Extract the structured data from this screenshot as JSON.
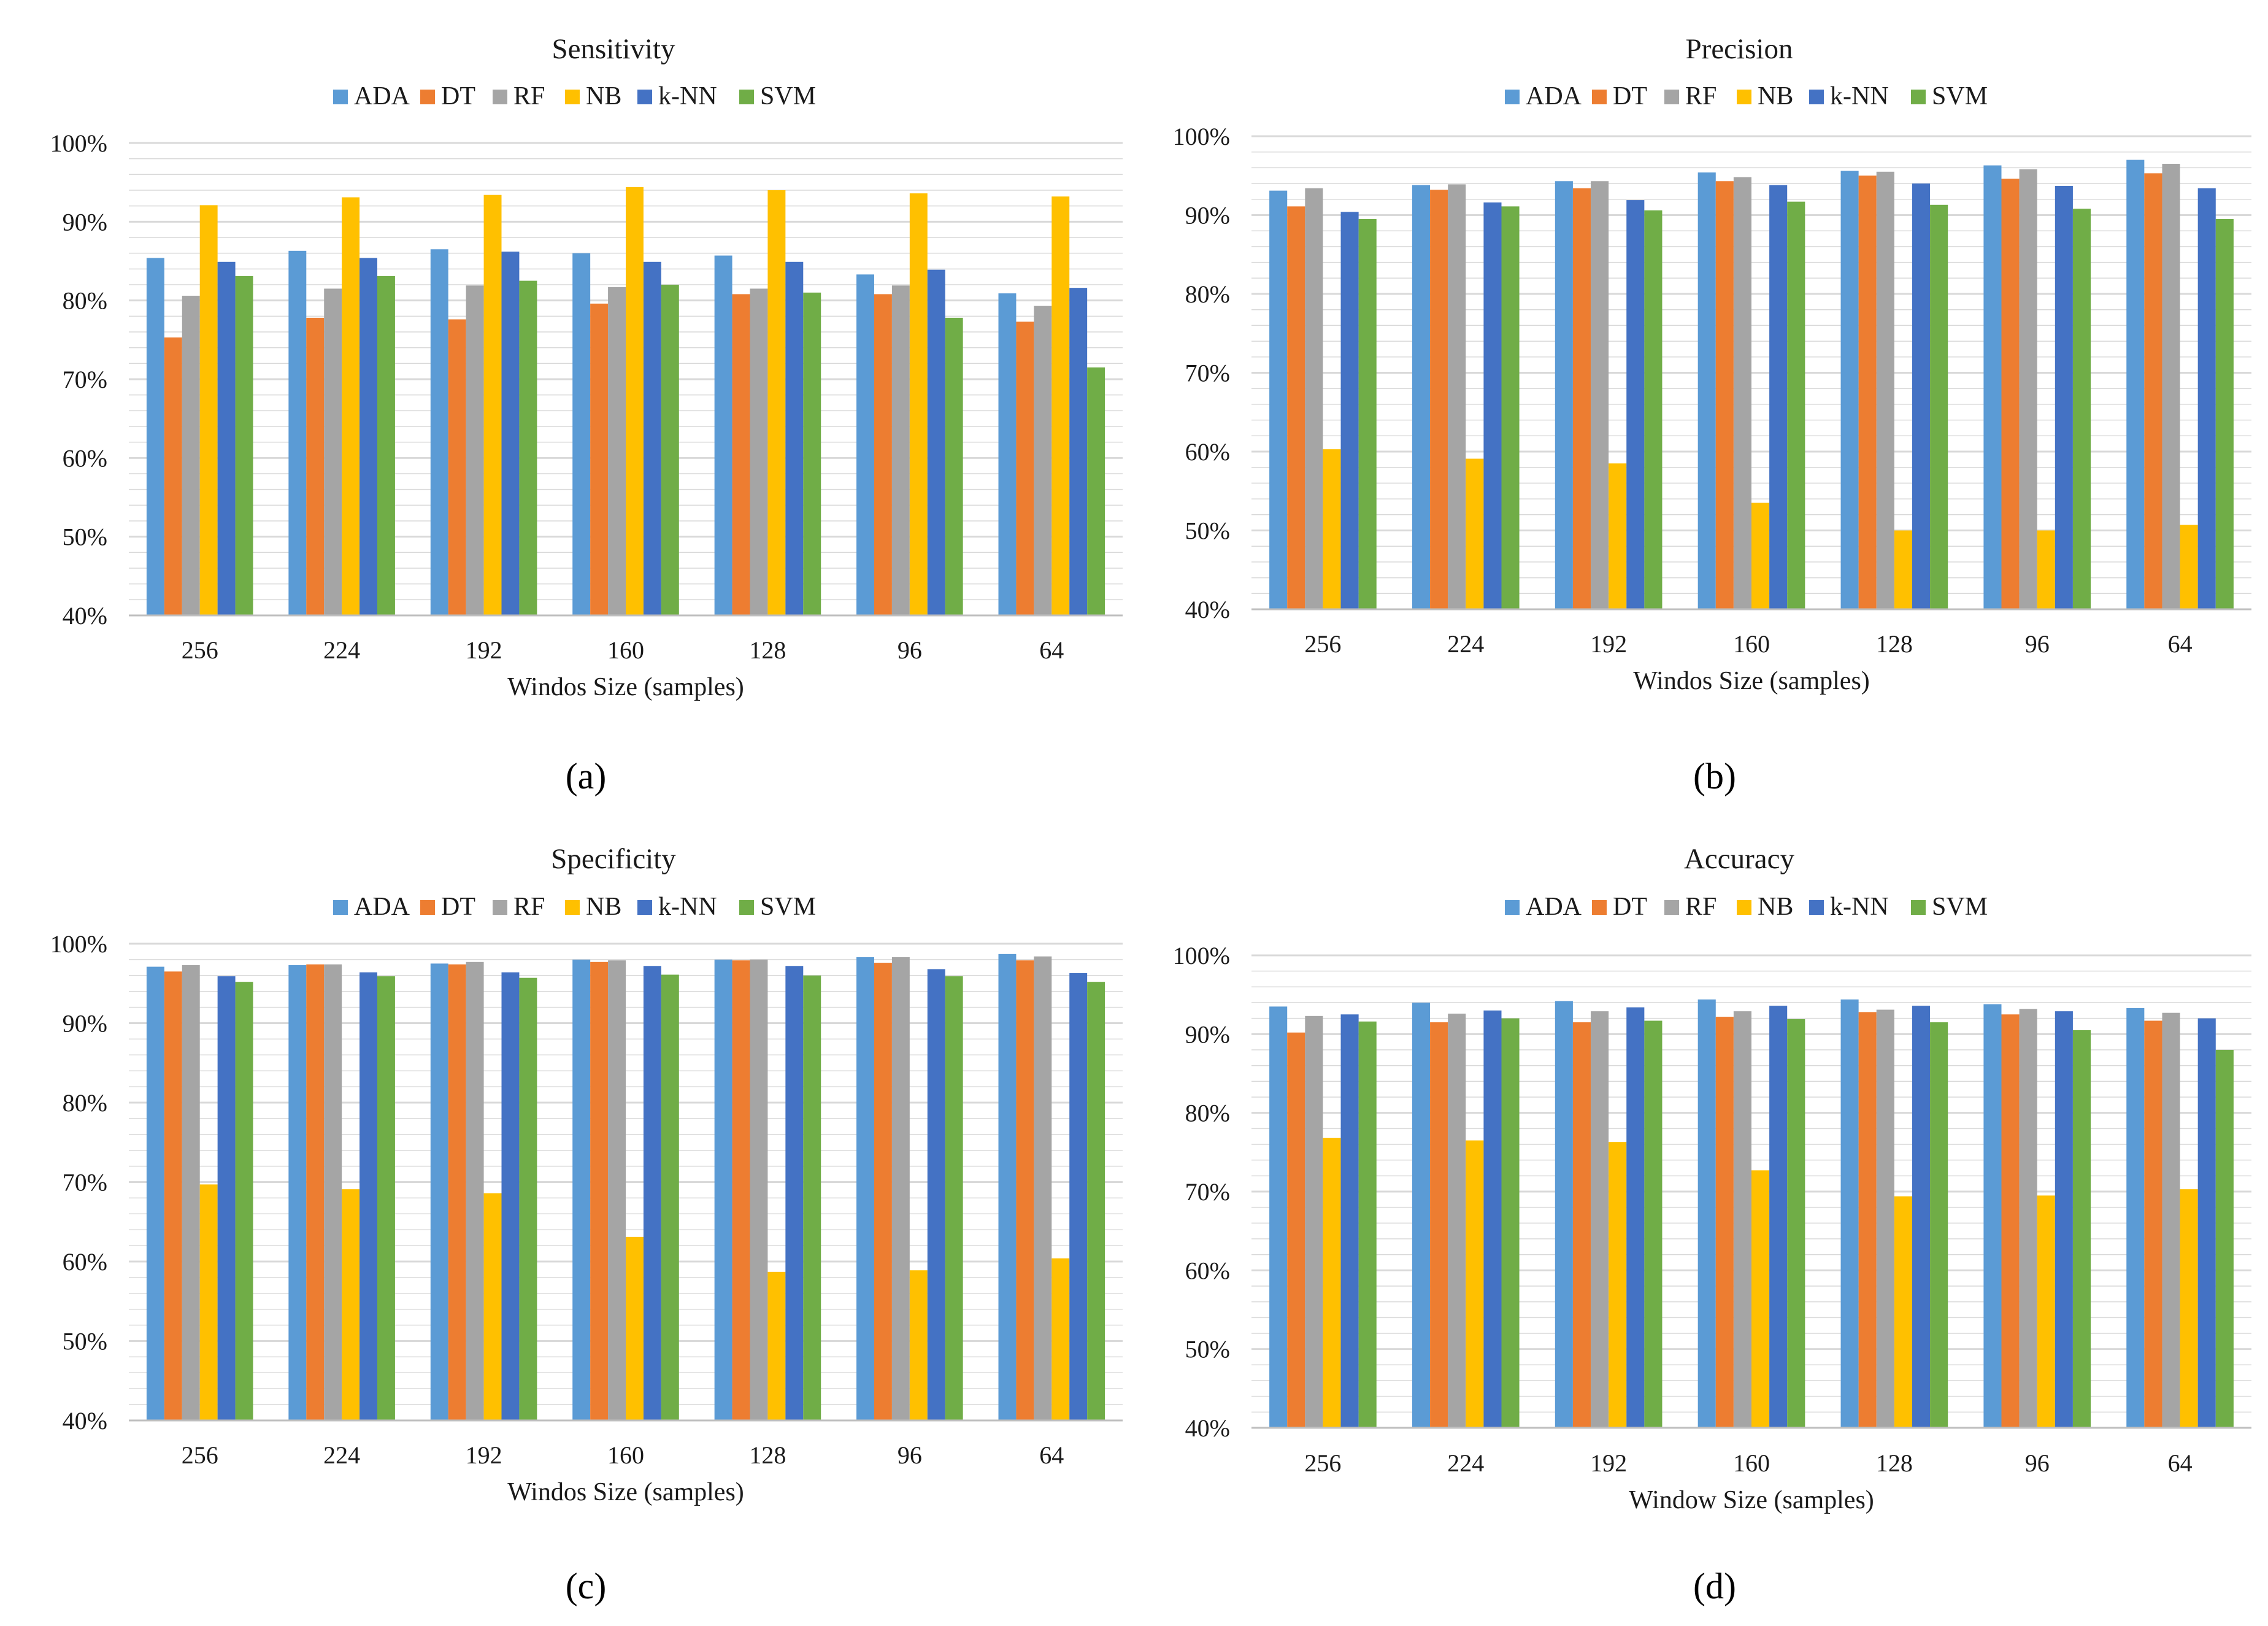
{
  "panel_labels": [
    "(a)",
    "(b)",
    "(c)",
    "(d)"
  ],
  "colors": {
    "ADA": "#5B9BD5",
    "DT": "#ED7D31",
    "RF": "#A5A5A5",
    "NB": "#FFC000",
    "k-NN": "#4472C4",
    "SVM": "#70AD47",
    "gridline": "#D9D9D9",
    "axis": "#BFBFBF"
  },
  "chart_data": [
    {
      "type": "bar",
      "title": "Sensitivity",
      "xlabel": "Windos Size (samples)",
      "ylabel": "",
      "ylim": [
        40,
        100
      ],
      "yticks": [
        "40%",
        "50%",
        "60%",
        "70%",
        "80%",
        "90%",
        "100%"
      ],
      "legend_position": "top",
      "categories": [
        "256",
        "224",
        "192",
        "160",
        "128",
        "96",
        "64"
      ],
      "series": [
        {
          "name": "ADA",
          "values": [
            85.4,
            86.3,
            86.5,
            86.0,
            85.7,
            83.3,
            80.9
          ]
        },
        {
          "name": "DT",
          "values": [
            75.3,
            77.8,
            77.6,
            79.6,
            80.8,
            80.8,
            77.3
          ]
        },
        {
          "name": "RF",
          "values": [
            80.6,
            81.5,
            81.9,
            81.7,
            81.5,
            81.9,
            79.3
          ]
        },
        {
          "name": "NB",
          "values": [
            92.1,
            93.1,
            93.4,
            94.4,
            94.0,
            93.6,
            93.2
          ]
        },
        {
          "name": "k-NN",
          "values": [
            84.9,
            85.4,
            86.2,
            84.9,
            84.9,
            83.9,
            81.6
          ]
        },
        {
          "name": "SVM",
          "values": [
            83.1,
            83.1,
            82.5,
            82.0,
            81.0,
            77.8,
            71.5
          ]
        }
      ]
    },
    {
      "type": "bar",
      "title": "Precision",
      "xlabel": "Windos Size (samples)",
      "ylabel": "",
      "ylim": [
        40,
        100
      ],
      "yticks": [
        "40%",
        "50%",
        "60%",
        "70%",
        "80%",
        "90%",
        "100%"
      ],
      "legend_position": "top",
      "categories": [
        "256",
        "224",
        "192",
        "160",
        "128",
        "96",
        "64"
      ],
      "series": [
        {
          "name": "ADA",
          "values": [
            93.1,
            93.8,
            94.3,
            95.4,
            95.6,
            96.3,
            97.0
          ]
        },
        {
          "name": "DT",
          "values": [
            91.1,
            93.2,
            93.4,
            94.3,
            95.0,
            94.6,
            95.3
          ]
        },
        {
          "name": "RF",
          "values": [
            93.4,
            93.9,
            94.3,
            94.8,
            95.5,
            95.8,
            96.5
          ]
        },
        {
          "name": "NB",
          "values": [
            60.3,
            59.1,
            58.5,
            53.5,
            50.0,
            50.0,
            50.7
          ]
        },
        {
          "name": "k-NN",
          "values": [
            90.4,
            91.6,
            91.9,
            93.8,
            94.0,
            93.7,
            93.4
          ]
        },
        {
          "name": "SVM",
          "values": [
            89.5,
            91.1,
            90.6,
            91.7,
            91.3,
            90.8,
            89.5
          ]
        }
      ]
    },
    {
      "type": "bar",
      "title": "Specificity",
      "xlabel": "Windos Size (samples)",
      "ylabel": "",
      "ylim": [
        40,
        100
      ],
      "yticks": [
        "40%",
        "50%",
        "60%",
        "70%",
        "80%",
        "90%",
        "100%"
      ],
      "legend_position": "top",
      "categories": [
        "256",
        "224",
        "192",
        "160",
        "128",
        "96",
        "64"
      ],
      "series": [
        {
          "name": "ADA",
          "values": [
            97.1,
            97.3,
            97.5,
            98.0,
            98.0,
            98.3,
            98.7
          ]
        },
        {
          "name": "DT",
          "values": [
            96.5,
            97.4,
            97.4,
            97.7,
            97.9,
            97.6,
            97.9
          ]
        },
        {
          "name": "RF",
          "values": [
            97.3,
            97.4,
            97.7,
            97.9,
            98.0,
            98.3,
            98.4
          ]
        },
        {
          "name": "NB",
          "values": [
            69.7,
            69.1,
            68.6,
            63.1,
            58.7,
            58.9,
            60.4
          ]
        },
        {
          "name": "k-NN",
          "values": [
            95.9,
            96.4,
            96.4,
            97.2,
            97.2,
            96.8,
            96.3
          ]
        },
        {
          "name": "SVM",
          "values": [
            95.2,
            95.9,
            95.7,
            96.1,
            96.0,
            95.9,
            95.2
          ]
        }
      ]
    },
    {
      "type": "bar",
      "title": "Accuracy",
      "xlabel": "Window Size (samples)",
      "ylabel": "",
      "ylim": [
        40,
        100
      ],
      "yticks": [
        "40%",
        "50%",
        "60%",
        "70%",
        "80%",
        "90%",
        "100%"
      ],
      "legend_position": "top",
      "categories": [
        "256",
        "224",
        "192",
        "160",
        "128",
        "96",
        "64"
      ],
      "series": [
        {
          "name": "ADA",
          "values": [
            93.5,
            94.0,
            94.2,
            94.4,
            94.4,
            93.8,
            93.3
          ]
        },
        {
          "name": "DT",
          "values": [
            90.2,
            91.5,
            91.5,
            92.2,
            92.8,
            92.5,
            91.7
          ]
        },
        {
          "name": "RF",
          "values": [
            92.3,
            92.6,
            92.9,
            92.9,
            93.1,
            93.2,
            92.7
          ]
        },
        {
          "name": "NB",
          "values": [
            76.8,
            76.5,
            76.3,
            72.7,
            69.4,
            69.5,
            70.3
          ]
        },
        {
          "name": "k-NN",
          "values": [
            92.5,
            93.0,
            93.4,
            93.6,
            93.6,
            92.9,
            92.0
          ]
        },
        {
          "name": "SVM",
          "values": [
            91.6,
            92.0,
            91.7,
            91.9,
            91.5,
            90.5,
            88.0
          ]
        }
      ]
    }
  ]
}
